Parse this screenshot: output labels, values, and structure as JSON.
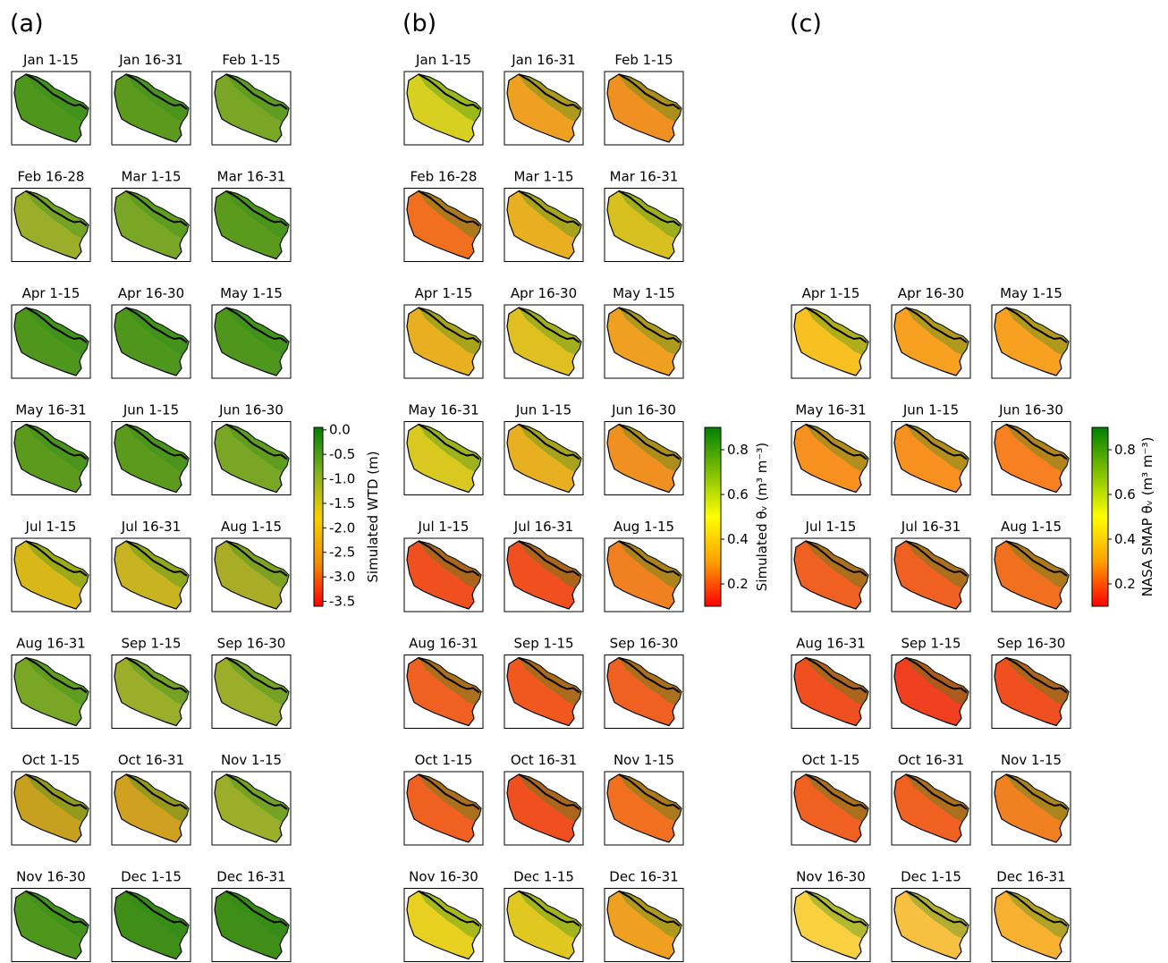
{
  "chart_data": [
    {
      "type": "map",
      "label": "(a)",
      "titles": [
        "Jan 1-15",
        "Jan 16-31",
        "Feb 1-15",
        "Feb 16-28",
        "Mar 1-15",
        "Mar 16-31",
        "Apr 1-15",
        "Apr 16-30",
        "May 1-15",
        "May 16-31",
        "Jun 1-15",
        "Jun 16-30",
        "Jul 1-15",
        "Jul 16-31",
        "Aug 1-15",
        "Aug 16-31",
        "Sep 1-15",
        "Sep 16-30",
        "Oct 1-15",
        "Oct 16-31",
        "Nov 1-15",
        "Nov 16-30",
        "Dec 1-15",
        "Dec 16-31"
      ],
      "colors": [
        "#4f961c",
        "#5c9a1e",
        "#7aa626",
        "#9aae2a",
        "#7aa626",
        "#5a9a1c",
        "#4f961c",
        "#4f961c",
        "#4f961c",
        "#5c9a1e",
        "#5c9a1e",
        "#7aa626",
        "#d8b818",
        "#c8b420",
        "#a8ac26",
        "#7aa626",
        "#9aae2a",
        "#9aae2a",
        "#c8a020",
        "#d0a020",
        "#9aae2a",
        "#4f961c",
        "#3e8e18",
        "#3e8e18"
      ],
      "colorbar_label": "Simulated WTD (m)",
      "ylim": [
        -3.6,
        0.05
      ],
      "yticks": [
        {
          "value": 0,
          "label": "0.0"
        },
        -0.5,
        {
          "value": -1,
          "label": "-1.0"
        },
        -1.5,
        {
          "value": -2,
          "label": "-2.0"
        },
        -2.5,
        {
          "value": -3,
          "label": "-3.0"
        },
        -3.5
      ],
      "colormap": [
        "#ff0000",
        "#f09000",
        "#f8d000",
        "#80b020",
        "#008000"
      ]
    },
    {
      "type": "map",
      "label": "(b)",
      "titles": [
        "Jan 1-15",
        "Jan 16-31",
        "Feb 1-15",
        "Feb 16-28",
        "Mar 1-15",
        "Mar 16-31",
        "Apr 1-15",
        "Apr 16-30",
        "May 1-15",
        "May 16-31",
        "Jun 1-15",
        "Jun 16-30",
        "Jul 1-15",
        "Jul 16-31",
        "Aug 1-15",
        "Aug 16-31",
        "Sep 1-15",
        "Sep 16-30",
        "Oct 1-15",
        "Oct 16-31",
        "Nov 1-15",
        "Nov 16-30",
        "Dec 1-15",
        "Dec 16-31"
      ],
      "colors": [
        "#d8d020",
        "#f0a020",
        "#f09020",
        "#f07020",
        "#e8b020",
        "#d8c020",
        "#e8b020",
        "#e0c020",
        "#f0a020",
        "#d8c820",
        "#e8b020",
        "#f09020",
        "#f05020",
        "#f05020",
        "#f08020",
        "#f06020",
        "#f05820",
        "#f06020",
        "#f06020",
        "#f05020",
        "#f07020",
        "#e8d020",
        "#e0c820",
        "#f0a020"
      ],
      "colorbar_label": "Simulated θᵥ (m³ m⁻³)",
      "ylim": [
        0.1,
        0.9
      ],
      "yticks": [
        0.2,
        0.4,
        0.6,
        0.8
      ],
      "colormap": [
        "#ff0000",
        "#ffa000",
        "#ffff00",
        "#80c000",
        "#008000"
      ]
    },
    {
      "type": "map",
      "label": "(c)",
      "titles": [
        "Apr 1-15",
        "Apr 16-30",
        "May 1-15",
        "May 16-31",
        "Jun 1-15",
        "Jun 16-30",
        "Jul 1-15",
        "Jul 16-31",
        "Aug 1-15",
        "Aug 16-31",
        "Sep 1-15",
        "Sep 16-30",
        "Oct 1-15",
        "Oct 16-31",
        "Nov 1-15",
        "Nov 16-30",
        "Dec 1-15",
        "Dec 16-31"
      ],
      "colors": [
        "#f8c020",
        "#f8a020",
        "#f8a020",
        "#f89020",
        "#f89020",
        "#f88020",
        "#f06020",
        "#f06020",
        "#f07020",
        "#f05020",
        "#f04020",
        "#f05020",
        "#f06020",
        "#f06020",
        "#f08020",
        "#f8d040",
        "#f8c040",
        "#f8b030"
      ],
      "colorbar_label": "NASA SMAP θᵥ (m³ m⁻³)",
      "ylim": [
        0.1,
        0.9
      ],
      "yticks": [
        0.2,
        0.4,
        0.6,
        0.8
      ],
      "colormap": [
        "#ff0000",
        "#ffa000",
        "#ffff00",
        "#80c000",
        "#008000"
      ]
    }
  ]
}
